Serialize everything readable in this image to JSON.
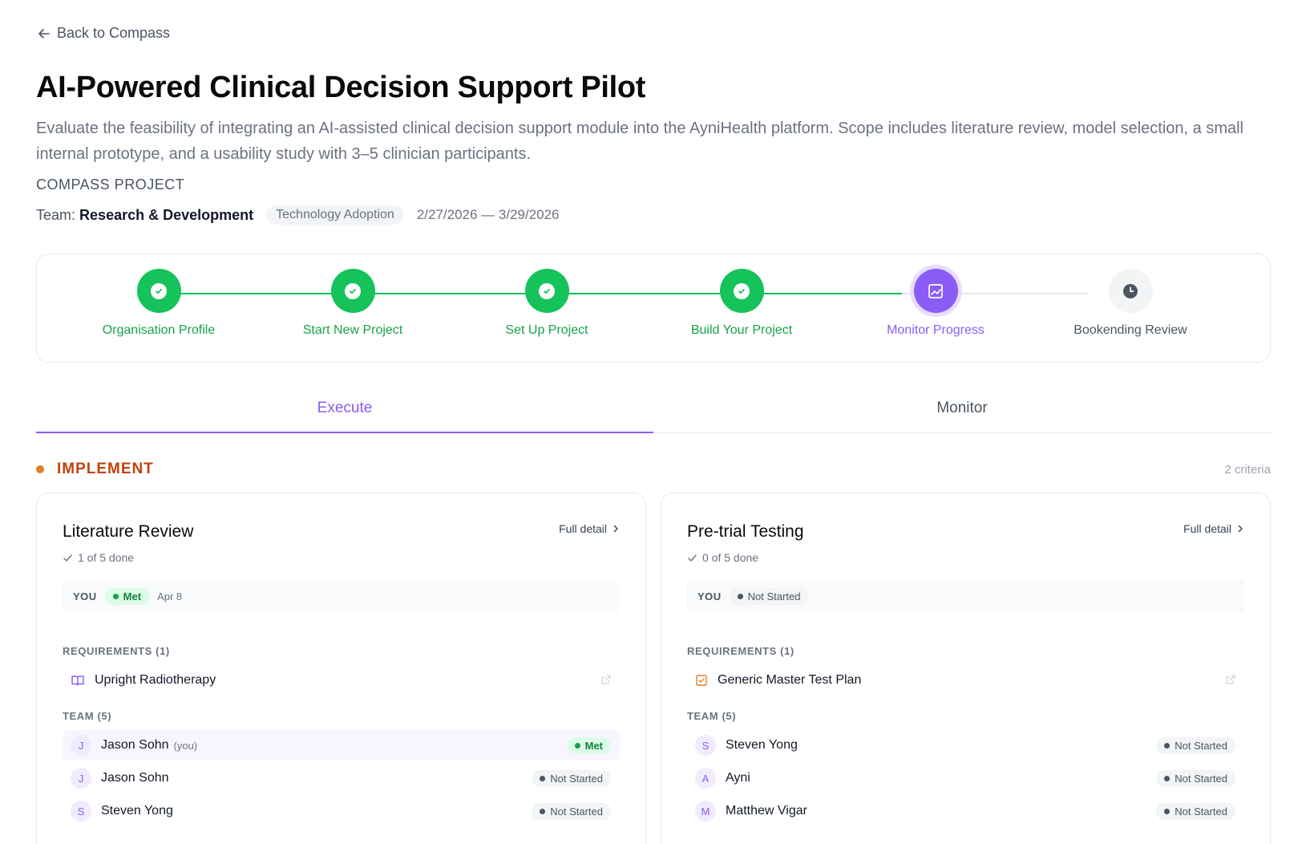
{
  "nav": {
    "back_label": "Back to Compass"
  },
  "project": {
    "title": "AI-Powered Clinical Decision Support Pilot",
    "description": "Evaluate the feasibility of integrating an AI-assisted clinical decision support module into the AyniHealth platform. Scope includes literature review, model selection, a small internal prototype, and a usability study with 3–5 clinician participants.",
    "kicker": "COMPASS PROJECT",
    "team_label": "Team:",
    "team_name": "Research & Development",
    "category": "Technology Adoption",
    "dates": "2/27/2026 — 3/29/2026"
  },
  "stepper": {
    "steps": [
      {
        "label": "Organisation Profile",
        "state": "done",
        "icon": "check-icon"
      },
      {
        "label": "Start New Project",
        "state": "done",
        "icon": "check-icon"
      },
      {
        "label": "Set Up Project",
        "state": "done",
        "icon": "check-icon"
      },
      {
        "label": "Build Your Project",
        "state": "done",
        "icon": "check-icon"
      },
      {
        "label": "Monitor Progress",
        "state": "active",
        "icon": "chart-icon"
      },
      {
        "label": "Bookending Review",
        "state": "pending",
        "icon": "clock-icon"
      }
    ]
  },
  "tabs": [
    {
      "label": "Execute",
      "active": true
    },
    {
      "label": "Monitor",
      "active": false
    }
  ],
  "section": {
    "name": "IMPLEMENT",
    "count": "2 criteria",
    "accent": "#c2410c"
  },
  "cards": [
    {
      "title": "Literature Review",
      "full_detail": "Full detail",
      "progress": "1 of 5 done",
      "you_label": "YOU",
      "you_status": "Met",
      "you_date": "Apr 8",
      "requirements_heading": "REQUIREMENTS (1)",
      "requirement": {
        "label": "Upright Radiotherapy",
        "icon": "book-icon"
      },
      "team_heading": "TEAM (5)",
      "members": [
        {
          "initial": "J",
          "name": "Jason Sohn",
          "tag": "(you)",
          "status": "Met"
        },
        {
          "initial": "J",
          "name": "Jason Sohn",
          "status": "Not Started"
        },
        {
          "initial": "S",
          "name": "Steven Yong",
          "status": "Not Started"
        }
      ]
    },
    {
      "title": "Pre-trial Testing",
      "full_detail": "Full detail",
      "progress": "0 of 5 done",
      "you_label": "YOU",
      "you_status": "Not Started",
      "requirements_heading": "REQUIREMENTS (1)",
      "requirement": {
        "label": "Generic Master Test Plan",
        "icon": "checklist-icon"
      },
      "team_heading": "TEAM (5)",
      "members": [
        {
          "initial": "S",
          "name": "Steven Yong",
          "status": "Not Started"
        },
        {
          "initial": "A",
          "name": "Ayni",
          "status": "Not Started"
        },
        {
          "initial": "M",
          "name": "Matthew Vigar",
          "status": "Not Started"
        }
      ]
    }
  ],
  "colors": {
    "success": "#16c25a",
    "active": "#8b5cf6",
    "accent_orange": "#e07f2a"
  }
}
